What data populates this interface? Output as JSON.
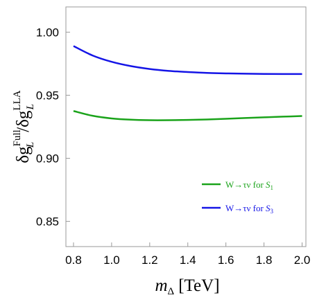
{
  "chart_data": {
    "type": "line",
    "xlabel": {
      "main": "m",
      "sub": "Δ",
      "unit": "[TeV]"
    },
    "ylabel": {
      "num_main": "δg",
      "num_sup": "Full",
      "num_sub": "L",
      "slash": "/",
      "den_main": "δg",
      "den_sup": "LLA",
      "den_sub": "L"
    },
    "xlim": [
      0.76,
      2.02
    ],
    "ylim": [
      0.83,
      1.02
    ],
    "x_ticks": [
      0.8,
      1.0,
      1.2,
      1.4,
      1.6,
      1.8,
      2.0
    ],
    "x_tick_labels": [
      "0.8",
      "1.0",
      "1.2",
      "1.4",
      "1.6",
      "1.8",
      "2.0"
    ],
    "y_ticks": [
      0.85,
      0.9,
      0.95,
      1.0
    ],
    "y_tick_labels": [
      "0.85",
      "0.90",
      "0.95",
      "1.00"
    ],
    "grid": false,
    "legend_position": "bottom-right",
    "series": [
      {
        "legend": {
          "prefix": "W→τν for ",
          "main": "S",
          "sub": "1"
        },
        "color": "#1aa31a",
        "x": [
          0.8,
          0.9,
          1.0,
          1.1,
          1.2,
          1.3,
          1.4,
          1.5,
          1.6,
          1.7,
          1.8,
          1.9,
          2.0
        ],
        "y": [
          0.9375,
          0.9337,
          0.9316,
          0.9306,
          0.9302,
          0.9302,
          0.9304,
          0.9308,
          0.9313,
          0.9319,
          0.9325,
          0.933,
          0.9335
        ]
      },
      {
        "legend": {
          "prefix": "W→τν for ",
          "main": "S",
          "sub": "3"
        },
        "color": "#1414e6",
        "x": [
          0.8,
          0.9,
          1.0,
          1.1,
          1.2,
          1.3,
          1.4,
          1.5,
          1.6,
          1.7,
          1.8,
          1.9,
          2.0
        ],
        "y": [
          0.989,
          0.9815,
          0.9765,
          0.9731,
          0.9708,
          0.9693,
          0.9684,
          0.9677,
          0.9673,
          0.9671,
          0.9669,
          0.9668,
          0.9668
        ]
      }
    ]
  }
}
